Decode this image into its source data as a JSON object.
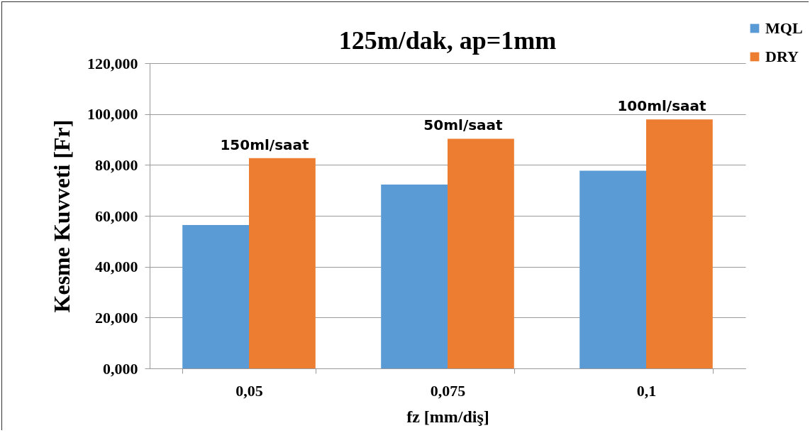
{
  "chart_data": {
    "type": "bar",
    "title": "125m/dak, ap=1mm",
    "xlabel": "fz [mm/diş]",
    "ylabel": "Kesme Kuvveti [Fr]",
    "categories": [
      "0,05",
      "0,075",
      "0,1"
    ],
    "series": [
      {
        "name": "MQL",
        "color": "#5b9bd5",
        "values": [
          56.4,
          72.3,
          77.7
        ]
      },
      {
        "name": "DRY",
        "color": "#ed7d31",
        "values": [
          82.7,
          90.3,
          97.9
        ]
      }
    ],
    "ylim": [
      0,
      120
    ],
    "yticks": [
      {
        "value": 0,
        "label": "0,000"
      },
      {
        "value": 20,
        "label": "20,000"
      },
      {
        "value": 40,
        "label": "40,000"
      },
      {
        "value": 60,
        "label": "60,000"
      },
      {
        "value": 80,
        "label": "80,000"
      },
      {
        "value": 100,
        "label": "100,000"
      },
      {
        "value": 120,
        "label": "120,000"
      }
    ],
    "grid": "y",
    "legend": "top right",
    "annotations": [
      "150ml/saat",
      "50ml/saat",
      "100ml/saat"
    ]
  }
}
